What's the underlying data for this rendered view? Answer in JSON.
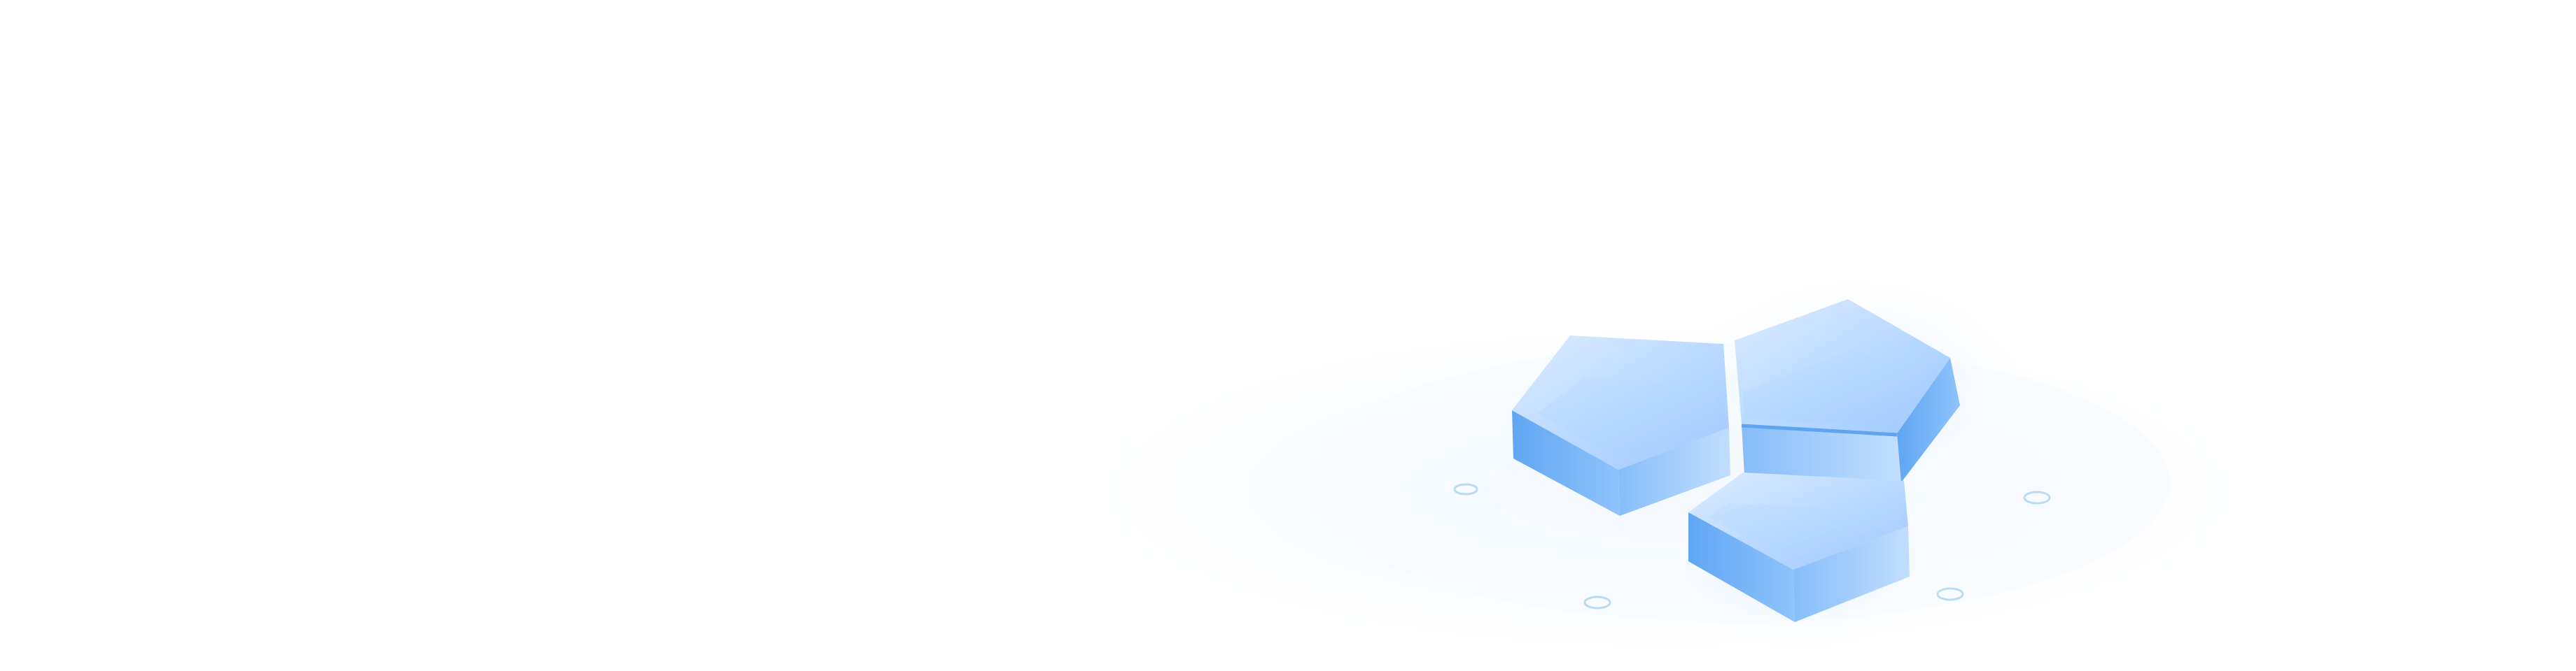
{
  "scene": {
    "description_name": "isometric-hexagon-tiles-illustration",
    "colors": {
      "background": "#ffffff",
      "tile_top_light": "#d8e9ff",
      "tile_top_mid": "#a9cfff",
      "tile_side_dark": "#6fb0f5",
      "tile_side_mid": "#8ec2fb",
      "dashed_line": "#b9dbf2",
      "glow": "#eaf4ff"
    }
  }
}
